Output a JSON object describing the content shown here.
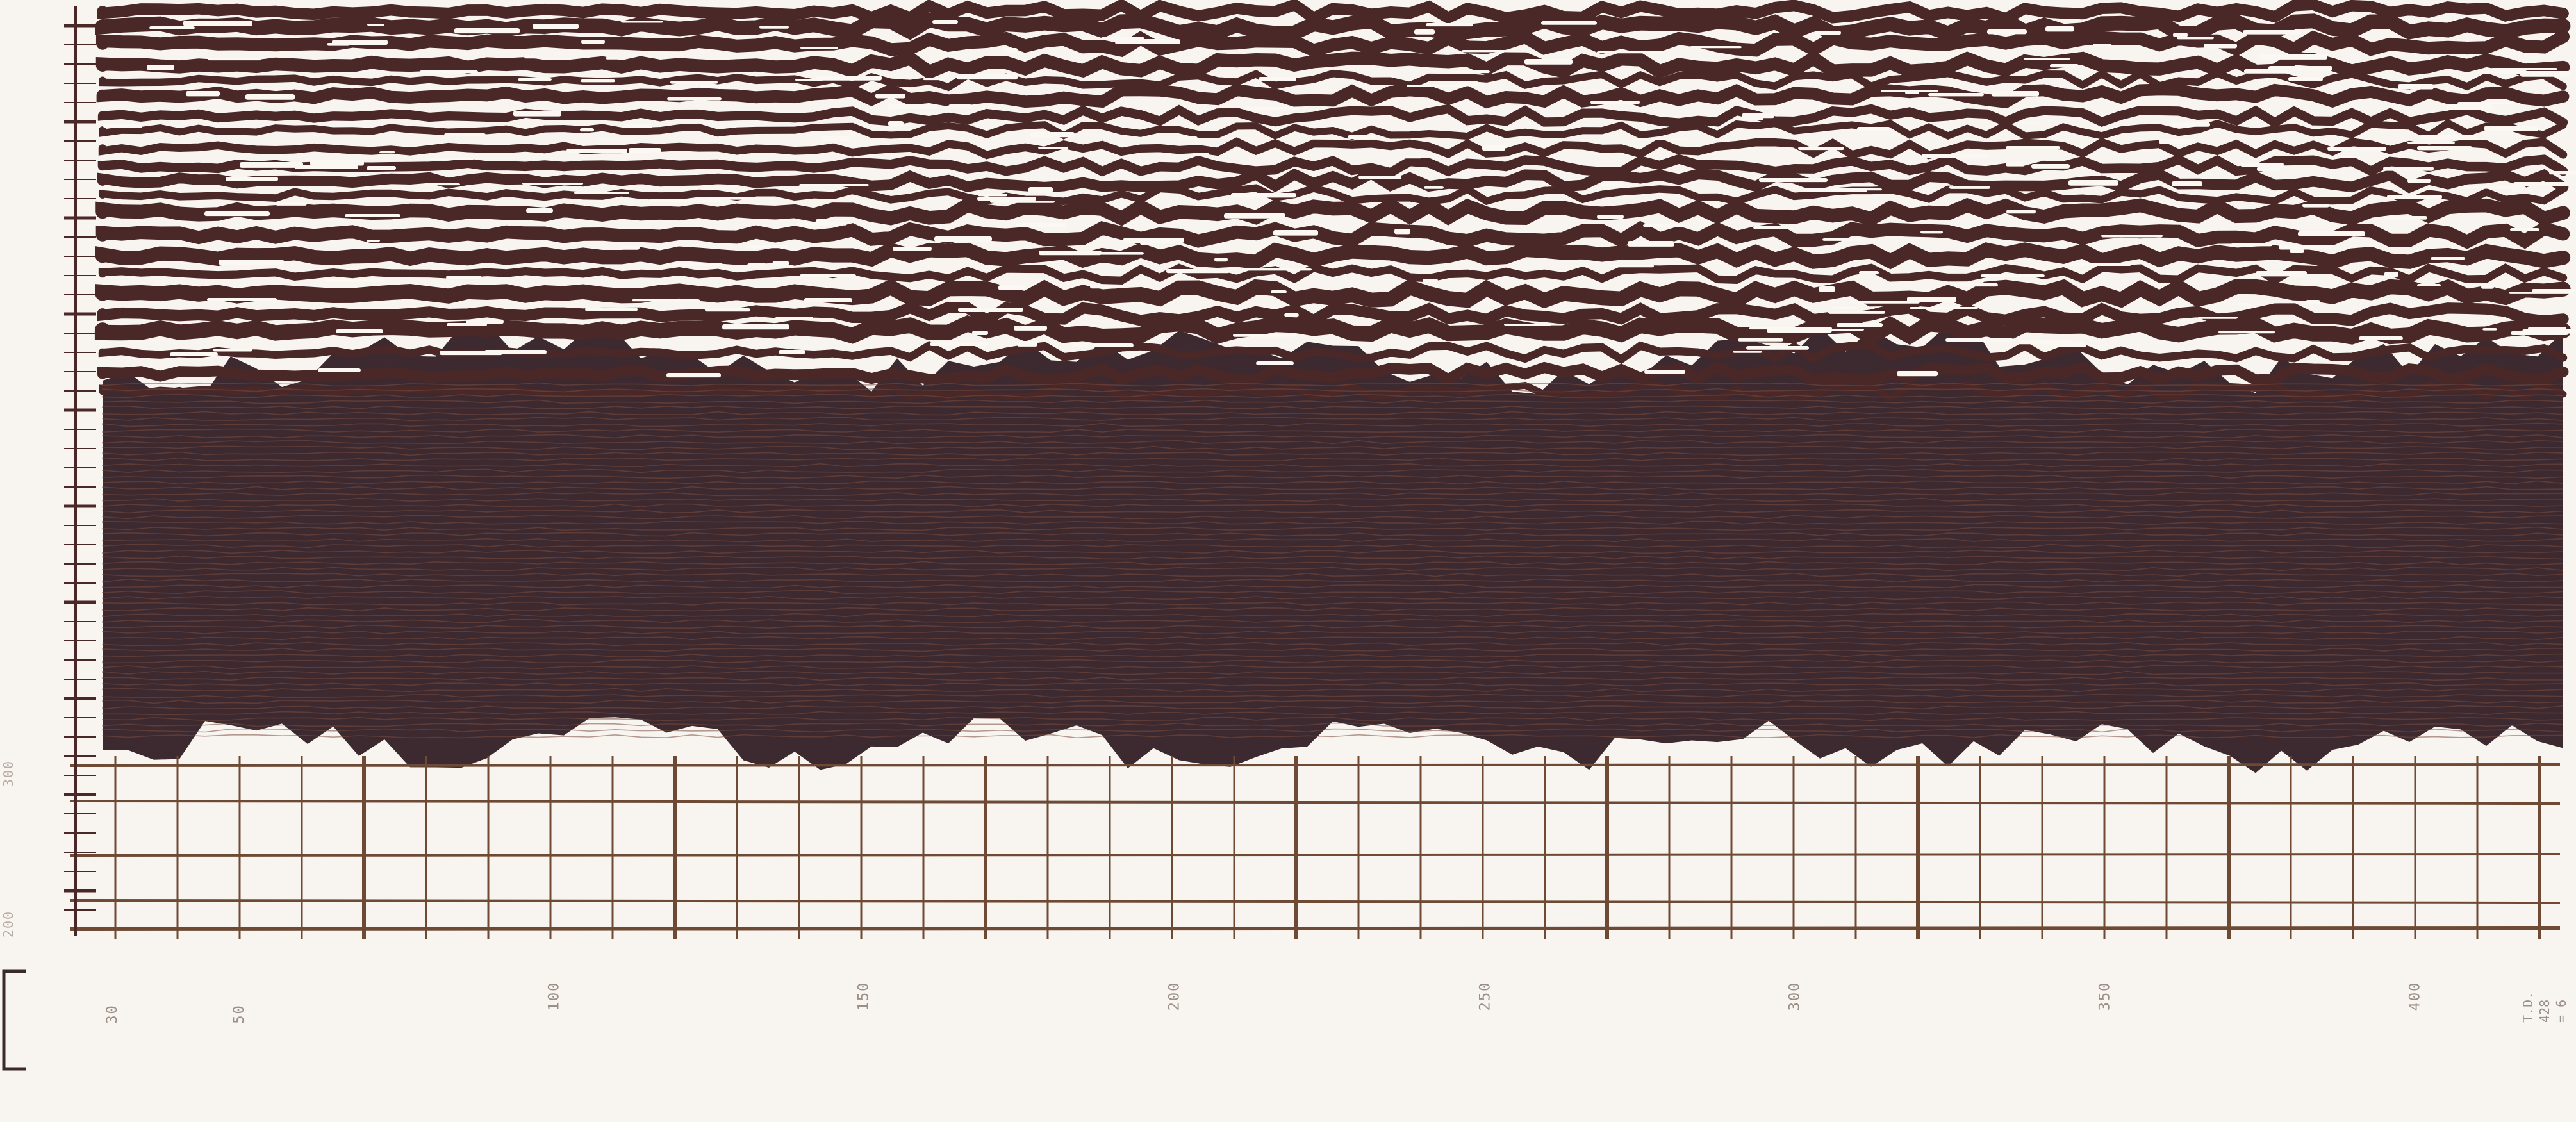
{
  "scan": {
    "ink_color": "#4a2828",
    "ink_dark_color": "#3d2a30",
    "paper_color": "#f8f5f1",
    "grid_color": "#6e4a35"
  },
  "axis": {
    "tick_labels": [
      "30",
      "50",
      "100",
      "150",
      "200",
      "250",
      "300",
      "350",
      "400"
    ]
  },
  "side_labels": [
    "200",
    "300"
  ],
  "td_note": {
    "lines": [
      "T.D.",
      "428",
      "= 6"
    ]
  },
  "icons": {
    "bracket": "bracket-mark"
  }
}
